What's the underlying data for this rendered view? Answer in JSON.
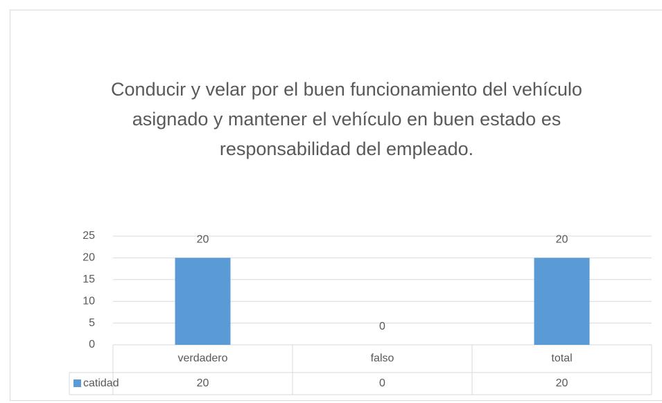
{
  "chart_data": {
    "type": "bar",
    "title": "Conducir y velar por el buen funcionamiento del vehículo asignado y mantener el vehículo en buen estado es responsabilidad del empleado.",
    "categories": [
      "verdadero",
      "falso",
      "total"
    ],
    "series": [
      {
        "name": "catidad",
        "color": "#5b9bd5",
        "values": [
          20,
          0,
          20
        ]
      }
    ],
    "ylim": [
      0,
      25
    ],
    "yticks": [
      0,
      5,
      10,
      15,
      20,
      25
    ],
    "grid": true,
    "data_table": true
  }
}
